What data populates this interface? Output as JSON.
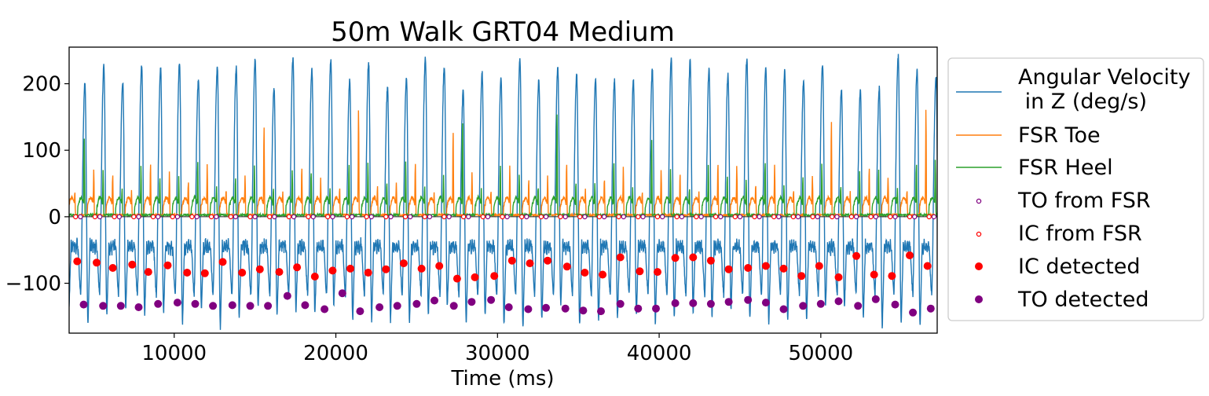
{
  "chart_data": {
    "type": "line",
    "title": "50m Walk GRT04 Medium",
    "xlabel": "Time (ms)",
    "ylabel": "",
    "xlim": [
      3500,
      57200
    ],
    "ylim": [
      -175,
      255
    ],
    "xticks": [
      10000,
      20000,
      30000,
      40000,
      50000
    ],
    "yticks": [
      200,
      100,
      0,
      -100
    ],
    "xtick_labels": [
      "10000",
      "20000",
      "30000",
      "40000",
      "50000"
    ],
    "ytick_labels": [
      "200",
      "100",
      "0",
      "−100"
    ],
    "grid": false,
    "legend_position": "outside-right",
    "series": [
      {
        "name": "Angular Velocity\n in Z (deg/s)",
        "kind": "line",
        "color": "#1f77b4",
        "step_period_ms": 1170,
        "peak_range": [
          185,
          242
        ],
        "trough_range": [
          -170,
          -130
        ],
        "stance_level": -45
      },
      {
        "name": "FSR Toe",
        "kind": "line",
        "color": "#ff7f0e",
        "spike_range": [
          20,
          150
        ],
        "baseline": 2
      },
      {
        "name": "FSR Heel",
        "kind": "line",
        "color": "#2ca02c",
        "spike_range": [
          25,
          145
        ],
        "baseline": 2
      },
      {
        "name": "TO from FSR",
        "kind": "scatter-hollow",
        "color": "#800080",
        "x": [
          4200,
          5400,
          6600,
          7800,
          9000,
          10200,
          11400,
          12600,
          13800,
          15000,
          16200,
          17400,
          18600,
          19800,
          21000,
          22200,
          23400,
          24600,
          25800,
          27000,
          28200,
          29400,
          30600,
          31800,
          33000,
          34200,
          35400,
          36600,
          37800,
          39000,
          40200,
          41400,
          42600,
          43800,
          45000,
          46200,
          47400,
          48600,
          49800,
          51000,
          52200,
          53400,
          54600,
          55800,
          57000
        ],
        "y_value": 0
      },
      {
        "name": "IC from FSR",
        "kind": "scatter-hollow",
        "color": "#ff0000",
        "x": [
          3900,
          5100,
          6300,
          7500,
          8700,
          9900,
          11100,
          12300,
          13500,
          14700,
          15900,
          17100,
          18300,
          19500,
          20700,
          21900,
          23100,
          24300,
          25500,
          26700,
          27900,
          29100,
          30300,
          31500,
          32700,
          33900,
          35100,
          36300,
          37500,
          38700,
          39900,
          41100,
          42300,
          43500,
          44700,
          45900,
          47100,
          48300,
          49500,
          50700,
          51900,
          53100,
          54300,
          55500,
          56700
        ],
        "y_value": 0
      },
      {
        "name": "IC detected",
        "kind": "scatter",
        "color": "#ff0000",
        "x": [
          4000,
          5200,
          6200,
          7400,
          8400,
          9600,
          10800,
          11900,
          13000,
          14200,
          15300,
          16500,
          17600,
          18700,
          19800,
          20900,
          22000,
          23100,
          24200,
          25300,
          26400,
          27500,
          28600,
          29800,
          30900,
          32000,
          33100,
          34300,
          35400,
          36500,
          37600,
          38800,
          39900,
          41000,
          42100,
          43200,
          44300,
          45500,
          46600,
          47700,
          48800,
          49900,
          51100,
          52200,
          53300,
          54400,
          55500,
          56600
        ],
        "y": [
          -67,
          -69,
          -77,
          -72,
          -83,
          -73,
          -84,
          -85,
          -68,
          -84,
          -79,
          -83,
          -76,
          -90,
          -81,
          -78,
          -84,
          -79,
          -70,
          -78,
          -74,
          -93,
          -91,
          -89,
          -66,
          -70,
          -66,
          -75,
          -84,
          -87,
          -61,
          -82,
          -83,
          -62,
          -61,
          -66,
          -79,
          -77,
          -74,
          -78,
          -89,
          -74,
          -91,
          -59,
          -87,
          -89,
          -58,
          -74
        ]
      },
      {
        "name": "TO detected",
        "kind": "scatter",
        "color": "#800080",
        "x": [
          4400,
          5600,
          6700,
          7800,
          9000,
          10200,
          11300,
          12400,
          13600,
          14700,
          15800,
          17000,
          18100,
          19300,
          20400,
          21500,
          22700,
          23800,
          25000,
          26100,
          27300,
          28400,
          29600,
          30700,
          31900,
          33000,
          34200,
          35300,
          36400,
          37600,
          38700,
          39800,
          41000,
          42100,
          43200,
          44300,
          45500,
          46600,
          47700,
          48900,
          50000,
          51100,
          52300,
          53400,
          54600,
          55700,
          56800
        ],
        "y": [
          -132,
          -134,
          -134,
          -136,
          -131,
          -129,
          -131,
          -134,
          -133,
          -134,
          -134,
          -119,
          -133,
          -139,
          -115,
          -142,
          -136,
          -134,
          -131,
          -126,
          -134,
          -128,
          -125,
          -136,
          -139,
          -137,
          -138,
          -141,
          -142,
          -131,
          -138,
          -138,
          -130,
          -130,
          -131,
          -128,
          -125,
          -129,
          -139,
          -134,
          -131,
          -127,
          -134,
          -124,
          -132,
          -144,
          -138
        ]
      }
    ]
  }
}
